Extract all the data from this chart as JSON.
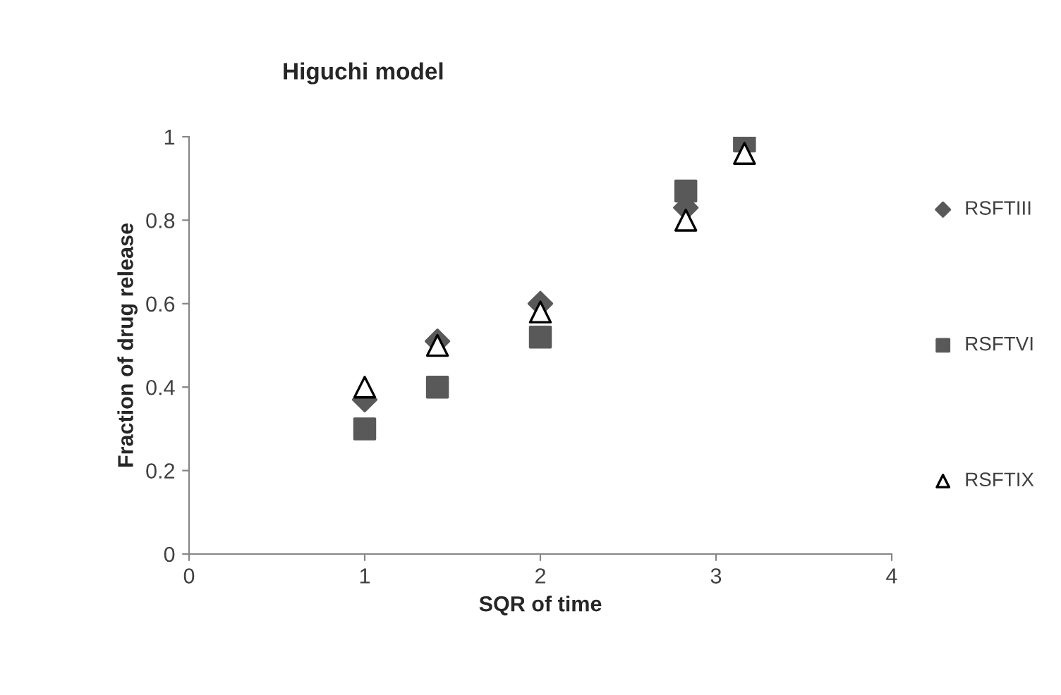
{
  "chart_data": {
    "type": "scatter",
    "title": "Higuchi model",
    "xlabel": "SQR of time",
    "ylabel": "Fraction of drug release",
    "x": [
      1,
      1.414,
      2,
      2.828,
      3.162
    ],
    "series": [
      {
        "name": "RSFTIII",
        "color": "#595959",
        "marker": "diamond",
        "values": [
          0.37,
          0.51,
          0.6,
          0.83,
          null
        ]
      },
      {
        "name": "RSFTVI",
        "color": "#595959",
        "marker": "square",
        "values": [
          0.3,
          0.4,
          0.52,
          0.87,
          0.99
        ]
      },
      {
        "name": "RSFTIX",
        "color": "#ffffff",
        "marker": "triangle",
        "values": [
          0.4,
          0.5,
          0.58,
          0.8,
          0.96
        ]
      }
    ],
    "xlim": [
      0,
      4
    ],
    "xticks": [
      0,
      1,
      2,
      3,
      4
    ],
    "ylim": [
      0,
      1
    ],
    "yticks": [
      0,
      0.2,
      0.4,
      0.6,
      0.8,
      1
    ],
    "grid": false,
    "legend": "right"
  }
}
